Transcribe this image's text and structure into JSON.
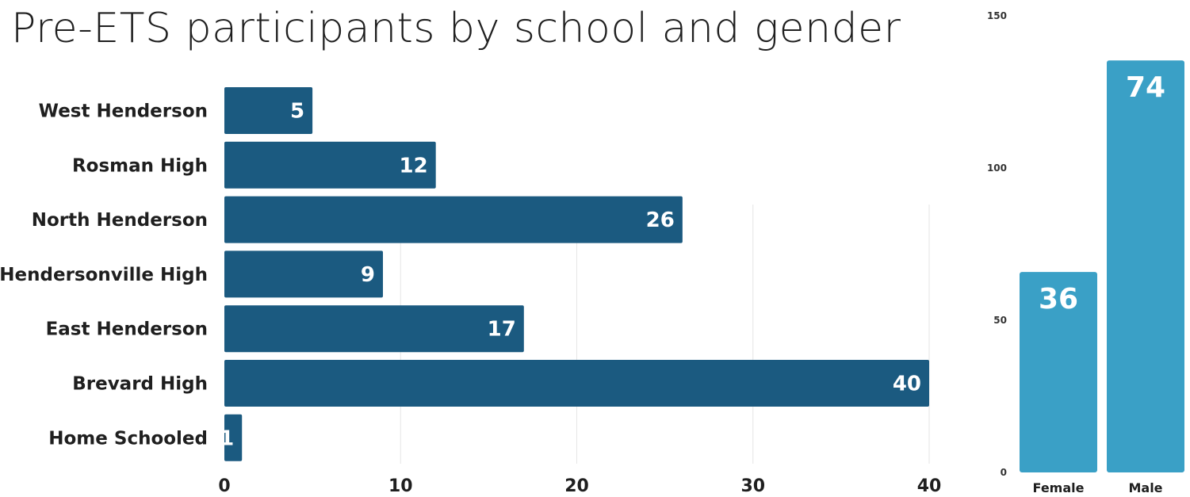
{
  "title": "Pre-ETS participants by school and gender",
  "colors": {
    "school_bar": "#1b5a80",
    "gender_bar": "#3aa0c6",
    "grid": "#e6e6e6"
  },
  "chart_data": [
    {
      "type": "bar",
      "orientation": "horizontal",
      "categories": [
        "West Henderson",
        "Rosman High",
        "North Henderson",
        "Hendersonville High",
        "East Henderson",
        "Brevard High",
        "Home Schooled"
      ],
      "values": [
        5,
        12,
        26,
        9,
        17,
        40,
        1
      ],
      "xlim": [
        0,
        40
      ],
      "x_ticks": [
        0,
        10,
        20,
        30,
        40
      ],
      "data_labels": true,
      "grid": true
    },
    {
      "type": "bar",
      "orientation": "vertical",
      "categories": [
        "Female",
        "Male"
      ],
      "values": [
        36,
        74
      ],
      "ylim": [
        0,
        150
      ],
      "y_ticks": [
        0,
        50,
        100,
        150
      ],
      "data_labels": true
    }
  ]
}
